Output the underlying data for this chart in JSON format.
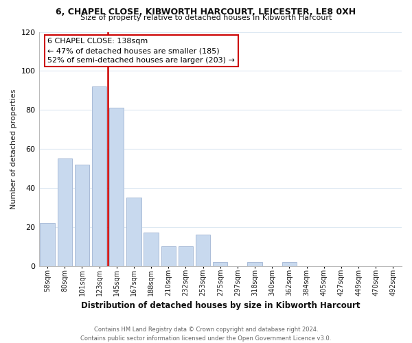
{
  "title_line1": "6, CHAPEL CLOSE, KIBWORTH HARCOURT, LEICESTER, LE8 0XH",
  "title_line2": "Size of property relative to detached houses in Kibworth Harcourt",
  "xlabel": "Distribution of detached houses by size in Kibworth Harcourt",
  "ylabel": "Number of detached properties",
  "bar_labels": [
    "58sqm",
    "80sqm",
    "101sqm",
    "123sqm",
    "145sqm",
    "167sqm",
    "188sqm",
    "210sqm",
    "232sqm",
    "253sqm",
    "275sqm",
    "297sqm",
    "318sqm",
    "340sqm",
    "362sqm",
    "384sqm",
    "405sqm",
    "427sqm",
    "449sqm",
    "470sqm",
    "492sqm"
  ],
  "bar_values": [
    22,
    55,
    52,
    92,
    81,
    35,
    17,
    10,
    10,
    16,
    2,
    0,
    2,
    0,
    2,
    0,
    0,
    0,
    0,
    0,
    0
  ],
  "bar_color": "#c8d9ee",
  "bar_edge_color": "#aabcd8",
  "vline_color": "#cc0000",
  "annotation_title": "6 CHAPEL CLOSE: 138sqm",
  "annotation_line1": "← 47% of detached houses are smaller (185)",
  "annotation_line2": "52% of semi-detached houses are larger (203) →",
  "annotation_box_color": "#ffffff",
  "annotation_box_edge": "#cc0000",
  "ylim": [
    0,
    120
  ],
  "yticks": [
    0,
    20,
    40,
    60,
    80,
    100,
    120
  ],
  "footer_line1": "Contains HM Land Registry data © Crown copyright and database right 2024.",
  "footer_line2": "Contains public sector information licensed under the Open Government Licence v3.0.",
  "bg_color": "#ffffff",
  "grid_color": "#dde8f2"
}
